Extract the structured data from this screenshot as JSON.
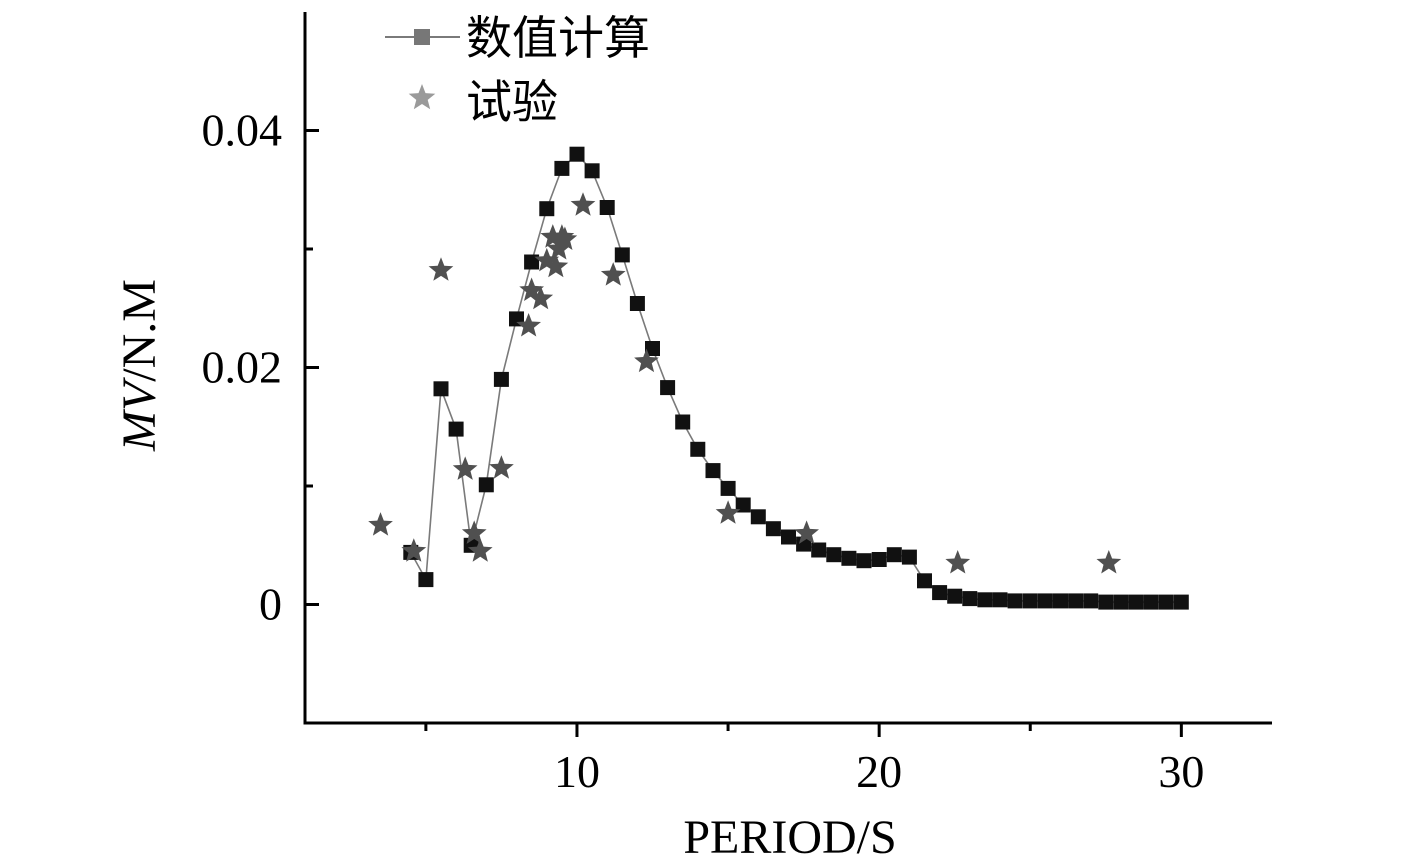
{
  "chart_data": {
    "type": "scatter",
    "xlabel": "PERIOD/S",
    "ylabel_italic": "MV",
    "ylabel_rest": "/N.M",
    "xlim": [
      1.0,
      33.0
    ],
    "ylim": [
      -0.01,
      0.05
    ],
    "xticks_major": [
      10,
      20,
      30
    ],
    "xticks_minor": [
      5,
      15,
      25
    ],
    "yticks_major": [
      0,
      0.02,
      0.04
    ],
    "yticks_minor": [
      -0.01,
      0.01,
      0.03
    ],
    "xtick_labels": [
      "10",
      "20",
      "30"
    ],
    "ytick_labels": [
      "0",
      "0.02",
      "0.04"
    ],
    "legend_position": "top-left",
    "colors": {
      "numeric": "#111111",
      "numeric_line": "#7a7a7a",
      "numeric_legend": "#777777",
      "experiment": "#505050",
      "experiment_legend": "#9a9a9a"
    },
    "series": [
      {
        "name": "数值计算",
        "marker": "square",
        "connected": true,
        "x": [
          4.5,
          5.0,
          5.5,
          6.0,
          6.5,
          7.0,
          7.5,
          8.0,
          8.5,
          9.0,
          9.5,
          10.0,
          10.5,
          11.0,
          11.5,
          12.0,
          12.5,
          13.0,
          13.5,
          14.0,
          14.5,
          15.0,
          15.5,
          16.0,
          16.5,
          17.0,
          17.5,
          18.0,
          18.5,
          19.0,
          19.5,
          20.0,
          20.5,
          21.0,
          21.5,
          22.0,
          22.5,
          23.0,
          23.5,
          24.0,
          24.5,
          25.0,
          25.5,
          26.0,
          26.5,
          27.0,
          27.5,
          28.0,
          28.5,
          29.0,
          29.5,
          30.0
        ],
        "y": [
          0.0044,
          0.0021,
          0.0182,
          0.0148,
          0.005,
          0.0101,
          0.019,
          0.0241,
          0.0289,
          0.0334,
          0.0368,
          0.038,
          0.0366,
          0.0335,
          0.0295,
          0.0254,
          0.0216,
          0.0183,
          0.0154,
          0.0131,
          0.0113,
          0.0098,
          0.0084,
          0.0074,
          0.0064,
          0.0057,
          0.0051,
          0.0046,
          0.0042,
          0.0039,
          0.0037,
          0.0038,
          0.0042,
          0.004,
          0.002,
          0.001,
          0.0007,
          0.0005,
          0.0004,
          0.0004,
          0.0003,
          0.0003,
          0.0003,
          0.0003,
          0.0003,
          0.0003,
          0.0002,
          0.0002,
          0.0002,
          0.0002,
          0.0002,
          0.0002
        ]
      },
      {
        "name": "试验",
        "marker": "star",
        "connected": false,
        "x": [
          3.5,
          4.6,
          5.5,
          6.3,
          6.6,
          6.8,
          7.5,
          8.4,
          8.5,
          8.8,
          9.0,
          9.2,
          9.3,
          9.4,
          9.5,
          9.6,
          10.2,
          11.2,
          12.3,
          15.0,
          17.6,
          22.6,
          27.6
        ],
        "y": [
          0.0067,
          0.0045,
          0.0282,
          0.0114,
          0.006,
          0.0045,
          0.0115,
          0.0235,
          0.0265,
          0.0258,
          0.029,
          0.031,
          0.0285,
          0.03,
          0.031,
          0.0308,
          0.0337,
          0.0278,
          0.0205,
          0.0077,
          0.006,
          0.0035,
          0.0035
        ]
      }
    ]
  }
}
